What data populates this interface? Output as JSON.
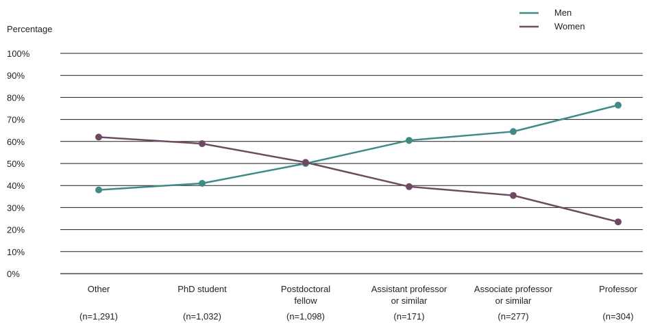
{
  "chart_data": {
    "type": "line",
    "ylabel": "Percentage",
    "xlabel": "",
    "ylim": [
      0,
      100
    ],
    "yticks": [
      0,
      10,
      20,
      30,
      40,
      50,
      60,
      70,
      80,
      90,
      100
    ],
    "ytick_labels": [
      "0%",
      "10%",
      "20%",
      "30%",
      "40%",
      "50%",
      "60%",
      "70%",
      "80%",
      "90%",
      "100%"
    ],
    "grid": true,
    "legend_position": "top-right",
    "categories": [
      [
        "Other"
      ],
      [
        "PhD student"
      ],
      [
        "Postdoctoral",
        "fellow"
      ],
      [
        "Assistant professor",
        "or similar"
      ],
      [
        "Associate professor",
        "or similar"
      ],
      [
        "Professor"
      ]
    ],
    "sample_sizes": [
      "(n=1,291)",
      "(n=1,032)",
      "(n=1,098)",
      "(n=171)",
      "(n=277)",
      "(n=304)"
    ],
    "series": [
      {
        "name": "Men",
        "color": "#3f8a84",
        "values": [
          38,
          41,
          50,
          60.5,
          64.5,
          76.5
        ]
      },
      {
        "name": "Women",
        "color": "#6e4a62",
        "values": [
          62,
          59,
          50.5,
          39.5,
          35.5,
          23.5
        ]
      }
    ]
  }
}
